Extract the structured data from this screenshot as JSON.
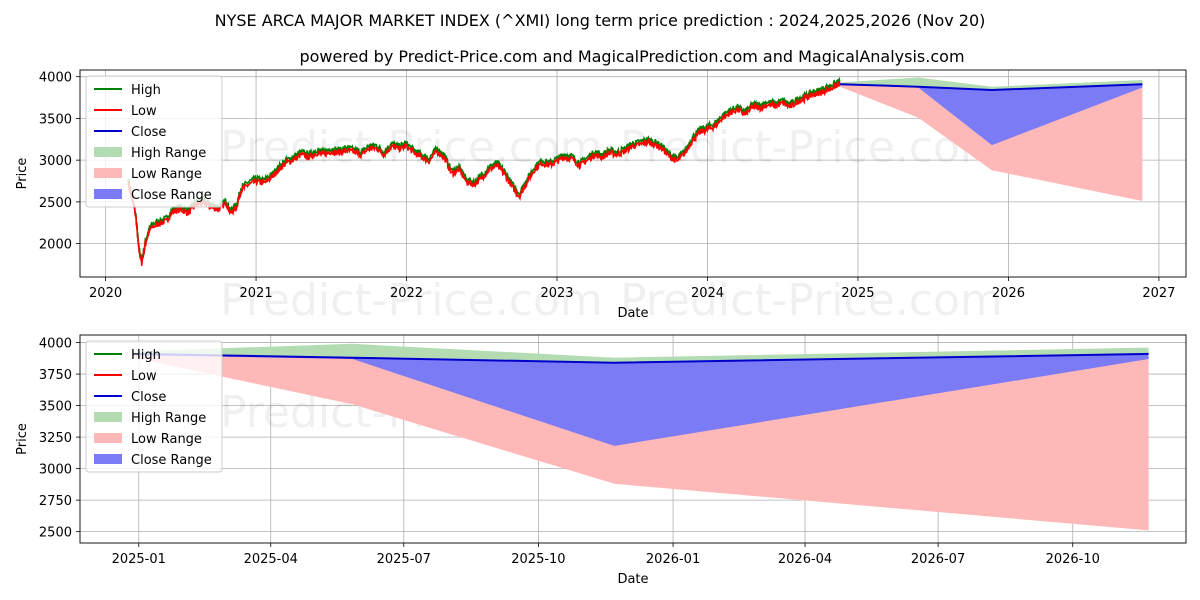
{
  "title": "NYSE ARCA MAJOR MARKET INDEX (^XMI) long term price prediction : 2024,2025,2026 (Nov 20)",
  "subtitle": "powered by Predict-Price.com and MagicalPrediction.com and MagicalAnalysis.com",
  "watermark": "Predict-Price.com",
  "colors": {
    "high": "#008000",
    "low": "#ff0000",
    "close": "#0000cc",
    "high_range": "#b3dcb3",
    "low_range": "#ffb8b8",
    "close_range": "#7b7bf5"
  },
  "chart_data": [
    {
      "type": "line",
      "name": "history-and-forecast",
      "xlabel": "Date",
      "ylabel": "Price",
      "xlim": [
        2019.83,
        2027.18
      ],
      "ylim": [
        1600,
        4080
      ],
      "x_ticks": [
        2020,
        2021,
        2022,
        2023,
        2024,
        2025,
        2026,
        2027
      ],
      "x_tick_labels": [
        "2020",
        "2021",
        "2022",
        "2023",
        "2024",
        "2025",
        "2026",
        "2027"
      ],
      "y_ticks": [
        2000,
        2500,
        3000,
        3500,
        4000
      ],
      "y_tick_labels": [
        "2000",
        "2500",
        "3000",
        "3500",
        "4000"
      ],
      "legend": [
        "High",
        "Low",
        "Close",
        "High Range",
        "Low Range",
        "Close Range"
      ],
      "legend_position": "upper-left",
      "history": {
        "x": [
          2020.15,
          2020.2,
          2020.22,
          2020.24,
          2020.27,
          2020.3,
          2020.35,
          2020.4,
          2020.45,
          2020.5,
          2020.55,
          2020.6,
          2020.65,
          2020.7,
          2020.75,
          2020.8,
          2020.83,
          2020.87,
          2020.9,
          2020.95,
          2021.0,
          2021.05,
          2021.1,
          2021.15,
          2021.2,
          2021.25,
          2021.3,
          2021.35,
          2021.4,
          2021.45,
          2021.5,
          2021.55,
          2021.6,
          2021.65,
          2021.7,
          2021.75,
          2021.8,
          2021.85,
          2021.9,
          2021.95,
          2022.0,
          2022.05,
          2022.1,
          2022.15,
          2022.2,
          2022.25,
          2022.3,
          2022.35,
          2022.4,
          2022.45,
          2022.5,
          2022.55,
          2022.6,
          2022.65,
          2022.7,
          2022.75,
          2022.8,
          2022.85,
          2022.9,
          2022.95,
          2023.0,
          2023.05,
          2023.1,
          2023.15,
          2023.2,
          2023.25,
          2023.3,
          2023.35,
          2023.4,
          2023.45,
          2023.5,
          2023.55,
          2023.6,
          2023.65,
          2023.7,
          2023.75,
          2023.8,
          2023.85,
          2023.9,
          2023.95,
          2024.0,
          2024.05,
          2024.1,
          2024.15,
          2024.2,
          2024.25,
          2024.3,
          2024.35,
          2024.4,
          2024.45,
          2024.5,
          2024.55,
          2024.6,
          2024.65,
          2024.7,
          2024.75,
          2024.8,
          2024.85,
          2024.88
        ],
        "close": [
          2750,
          2350,
          1950,
          1780,
          2050,
          2200,
          2250,
          2280,
          2400,
          2420,
          2380,
          2480,
          2500,
          2450,
          2420,
          2500,
          2380,
          2450,
          2650,
          2720,
          2760,
          2740,
          2800,
          2900,
          2980,
          3020,
          3080,
          3050,
          3100,
          3080,
          3120,
          3100,
          3130,
          3110,
          3080,
          3150,
          3160,
          3080,
          3180,
          3150,
          3180,
          3100,
          3050,
          3000,
          3120,
          3050,
          2850,
          2900,
          2750,
          2720,
          2800,
          2900,
          2950,
          2850,
          2700,
          2580,
          2750,
          2900,
          2980,
          2950,
          3000,
          3050,
          3030,
          2950,
          3010,
          3080,
          3050,
          3100,
          3080,
          3120,
          3180,
          3200,
          3230,
          3200,
          3150,
          3050,
          3000,
          3100,
          3250,
          3350,
          3380,
          3420,
          3520,
          3580,
          3620,
          3560,
          3650,
          3640,
          3680,
          3660,
          3700,
          3650,
          3720,
          3750,
          3800,
          3820,
          3860,
          3900,
          3930
        ]
      },
      "forecast": {
        "x": [
          2024.88,
          2025.4,
          2025.89,
          2026.89
        ],
        "close": [
          3910,
          3880,
          3840,
          3910
        ],
        "high": [
          3930,
          3990,
          3880,
          3960
        ],
        "low": [
          3880,
          3510,
          2880,
          2510
        ],
        "close_range_low": [
          3900,
          3870,
          3180,
          3870
        ]
      }
    },
    {
      "type": "area",
      "name": "forecast-zoom",
      "xlabel": "Date",
      "ylabel": "Price",
      "xlim": [
        2024.89,
        2026.96
      ],
      "ylim": [
        2410,
        4060
      ],
      "x_ticks": [
        2025.0,
        2025.247,
        2025.496,
        2025.748,
        2026.0,
        2026.247,
        2026.496,
        2026.748
      ],
      "x_tick_labels": [
        "2025-01",
        "2025-04",
        "2025-07",
        "2025-10",
        "2026-01",
        "2026-04",
        "2026-07",
        "2026-10"
      ],
      "y_ticks": [
        2500,
        2750,
        3000,
        3250,
        3500,
        3750,
        4000
      ],
      "y_tick_labels": [
        "2500",
        "2750",
        "3000",
        "3250",
        "3500",
        "3750",
        "4000"
      ],
      "legend": [
        "High",
        "Low",
        "Close",
        "High Range",
        "Low Range",
        "Close Range"
      ],
      "legend_position": "upper-left",
      "forecast": {
        "x": [
          2024.99,
          2025.4,
          2025.89,
          2026.89
        ],
        "close": [
          3910,
          3880,
          3840,
          3910
        ],
        "high": [
          3930,
          3990,
          3880,
          3960
        ],
        "low": [
          3880,
          3510,
          2880,
          2510
        ],
        "close_range_low": [
          3900,
          3870,
          3180,
          3870
        ]
      }
    }
  ]
}
